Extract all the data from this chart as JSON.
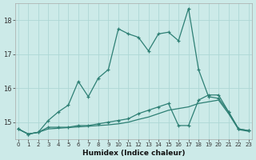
{
  "xlabel": "Humidex (Indice chaleur)",
  "background_color": "#cceae8",
  "grid_color": "#add8d5",
  "line_color": "#2d7f74",
  "x_values": [
    0,
    1,
    2,
    3,
    4,
    5,
    6,
    7,
    8,
    9,
    10,
    11,
    12,
    13,
    14,
    15,
    16,
    17,
    18,
    19,
    20,
    21,
    22,
    23
  ],
  "line1_y": [
    14.8,
    14.65,
    14.7,
    15.05,
    15.3,
    15.5,
    16.2,
    15.75,
    16.3,
    16.55,
    17.75,
    17.6,
    17.5,
    17.1,
    17.6,
    17.65,
    17.4,
    18.35,
    16.55,
    15.75,
    15.7,
    15.3,
    14.8,
    14.75
  ],
  "line2_y": [
    14.8,
    14.65,
    14.7,
    14.85,
    14.85,
    14.85,
    14.9,
    14.9,
    14.95,
    15.0,
    15.05,
    15.1,
    15.25,
    15.35,
    15.45,
    15.55,
    14.9,
    14.9,
    15.65,
    15.8,
    15.8,
    15.3,
    14.8,
    14.75
  ],
  "line3_y": [
    14.8,
    14.65,
    14.7,
    14.8,
    14.82,
    14.84,
    14.86,
    14.88,
    14.9,
    14.92,
    14.95,
    15.0,
    15.08,
    15.15,
    15.25,
    15.35,
    15.4,
    15.45,
    15.55,
    15.6,
    15.65,
    15.25,
    14.78,
    14.73
  ],
  "ylim": [
    14.5,
    18.5
  ],
  "yticks": [
    15,
    16,
    17,
    18
  ],
  "xlim": [
    -0.3,
    23.3
  ]
}
